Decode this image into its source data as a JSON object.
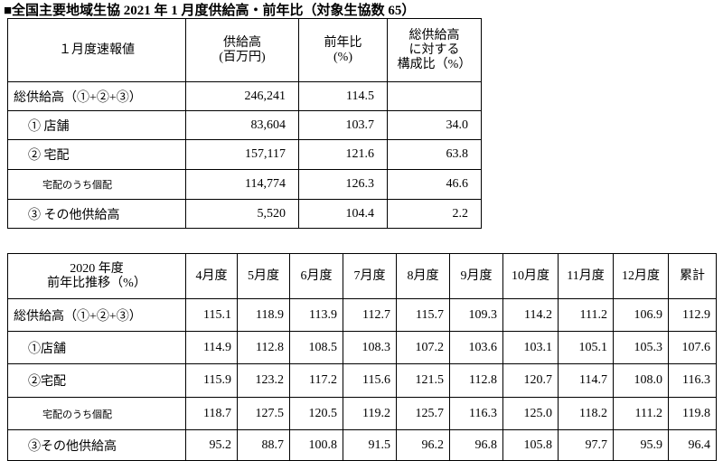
{
  "title": "■全国主要地域生協 2021 年 1 月度供給高・前年比（対象生協数 65）",
  "table1": {
    "header": [
      [
        "１月度速報値"
      ],
      [
        "供給高",
        "(百万円)"
      ],
      [
        "前年比",
        "(%)"
      ],
      [
        "総供給高",
        "に対する",
        "構成比（%）"
      ]
    ],
    "rows": [
      [
        "総供給高（①+②+③）",
        "246,241",
        "114.5",
        null
      ],
      [
        "① 店舗",
        "83,604",
        "103.7",
        "34.0"
      ],
      [
        "② 宅配",
        "157,117",
        "121.6",
        "63.8"
      ],
      [
        "宅配のうち個配",
        "114,774",
        "126.3",
        "46.6"
      ],
      [
        "③ その他供給高",
        "5,520",
        "104.4",
        "2.2"
      ]
    ]
  },
  "table2": {
    "header": [
      [
        "2020 年度",
        "前年比推移（%）"
      ],
      [
        "4月度"
      ],
      [
        "5月度"
      ],
      [
        "6月度"
      ],
      [
        "7月度"
      ],
      [
        "8月度"
      ],
      [
        "9月度"
      ],
      [
        "10月度"
      ],
      [
        "11月度"
      ],
      [
        "12月度"
      ],
      [
        "累計"
      ]
    ],
    "rows": [
      [
        "総供給高（①+②+③）",
        "115.1",
        "118.9",
        "113.9",
        "112.7",
        "115.7",
        "109.3",
        "114.2",
        "111.2",
        "106.9",
        "112.9"
      ],
      [
        "①店舗",
        "114.9",
        "112.8",
        "108.5",
        "108.3",
        "107.2",
        "103.6",
        "103.1",
        "105.1",
        "105.3",
        "107.6"
      ],
      [
        "②宅配",
        "115.9",
        "123.2",
        "117.2",
        "115.6",
        "121.5",
        "112.8",
        "120.7",
        "114.7",
        "108.0",
        "116.3"
      ],
      [
        "宅配のうち個配",
        "118.7",
        "127.5",
        "120.5",
        "119.2",
        "125.7",
        "116.3",
        "125.0",
        "118.2",
        "111.2",
        "119.8"
      ],
      [
        "③その他供給高",
        "95.2",
        "88.7",
        "100.8",
        "91.5",
        "96.2",
        "96.8",
        "105.8",
        "97.7",
        "95.9",
        "96.4"
      ]
    ]
  }
}
